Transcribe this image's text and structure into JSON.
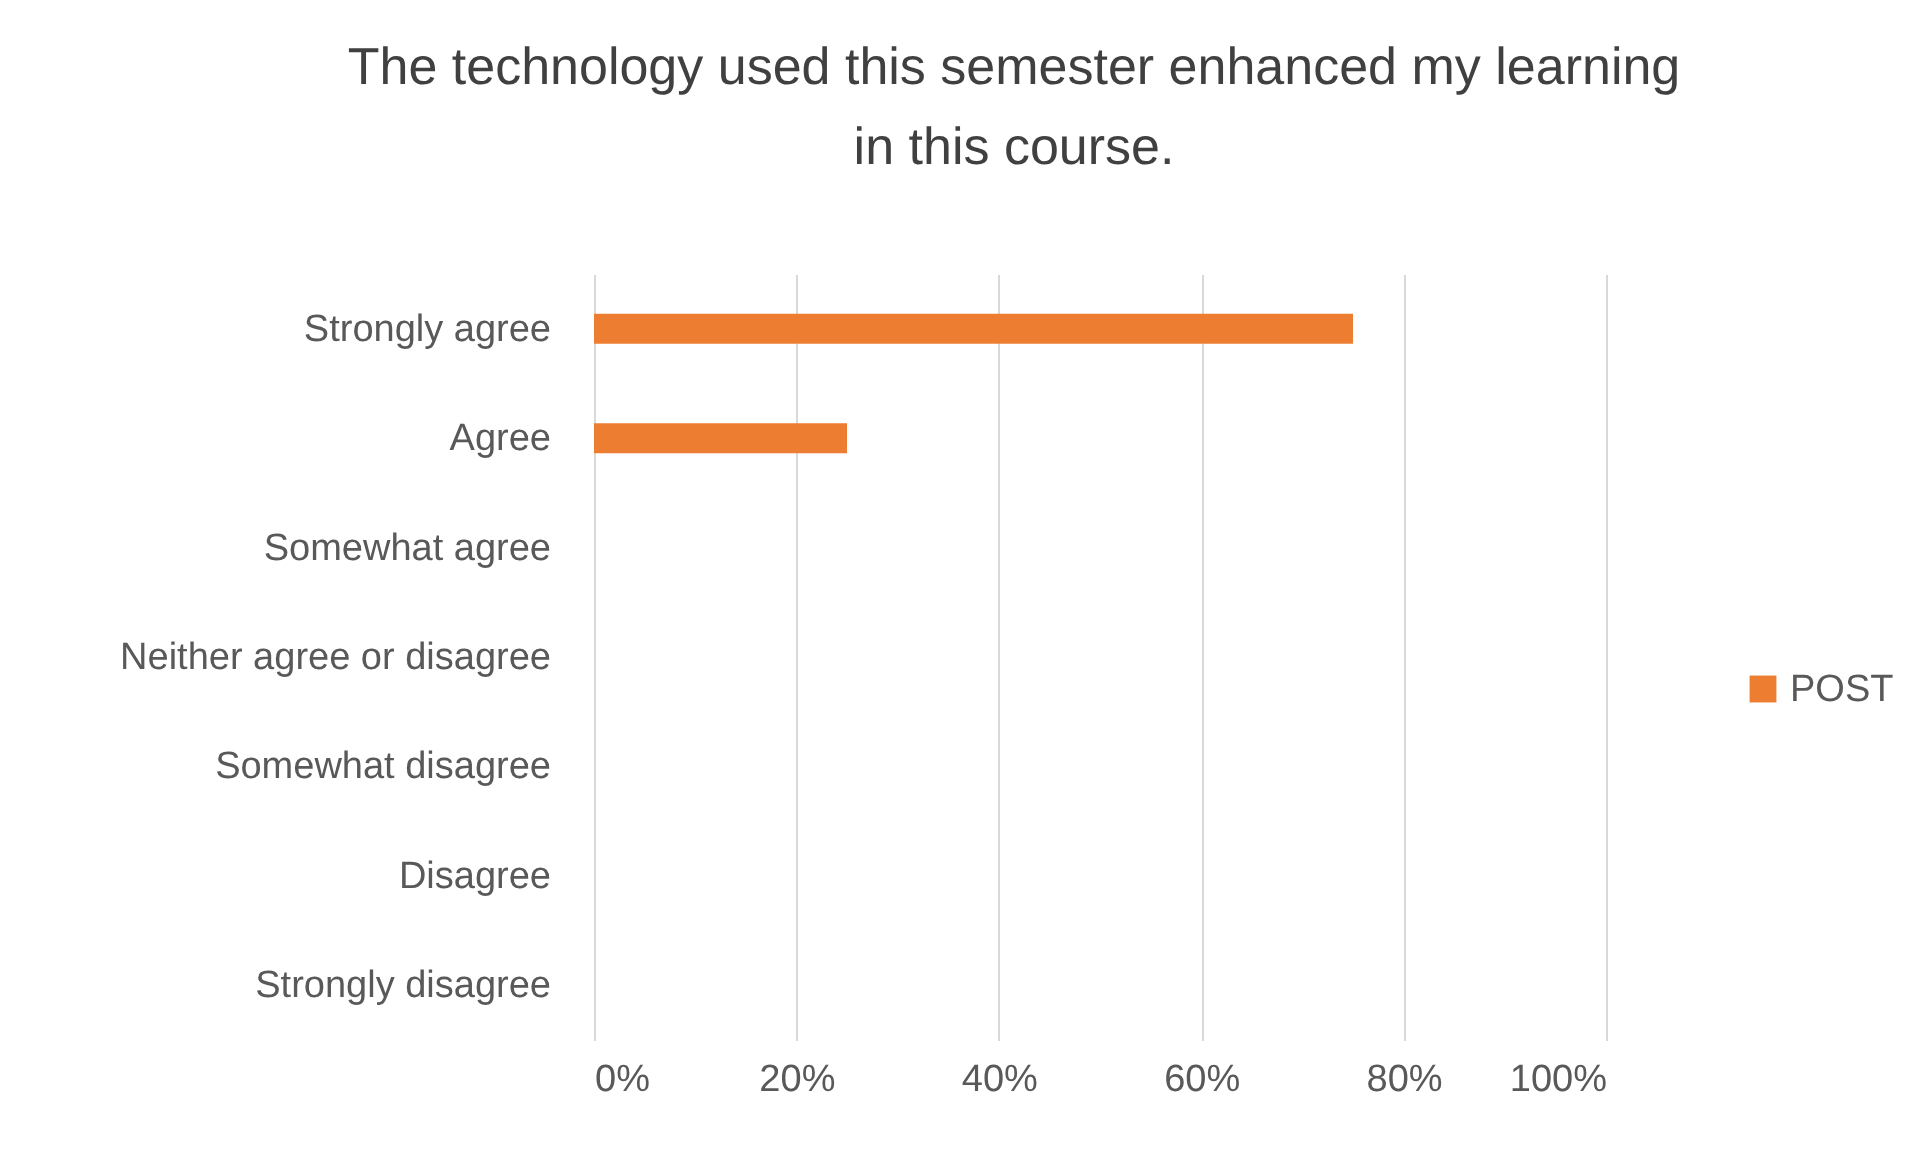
{
  "chart_data": {
    "type": "bar",
    "orientation": "horizontal",
    "title": "The technology used this semester enhanced my learning in this course.",
    "categories": [
      "Strongly agree",
      "Agree",
      "Somewhat agree",
      "Neither agree or disagree",
      "Somewhat disagree",
      "Disagree",
      "Strongly disagree"
    ],
    "series": [
      {
        "name": "POST",
        "color": "#ed7d31",
        "values": [
          75,
          25,
          0,
          0,
          0,
          0,
          0
        ]
      }
    ],
    "xlim": [
      0,
      100
    ],
    "xticks": [
      {
        "value": 0,
        "label": "0%"
      },
      {
        "value": 20,
        "label": "20%"
      },
      {
        "value": 40,
        "label": "40%"
      },
      {
        "value": 60,
        "label": "60%"
      },
      {
        "value": 80,
        "label": "80%"
      },
      {
        "value": 100,
        "label": "100%"
      }
    ],
    "grid": "x",
    "legend": "right"
  }
}
